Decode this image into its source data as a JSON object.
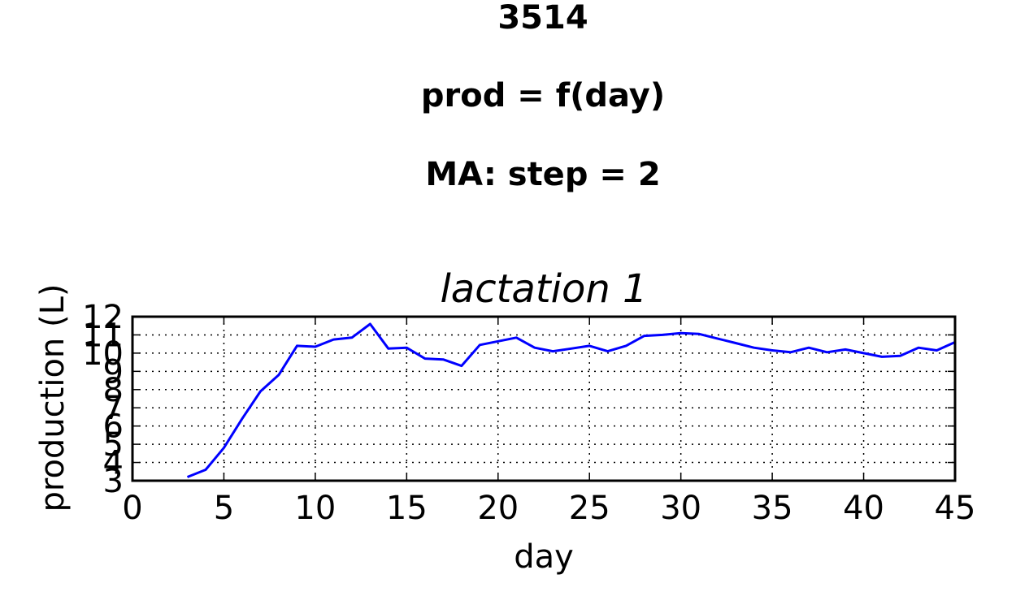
{
  "suptitle": {
    "line1": "3514",
    "line2": "prod = f(day)",
    "line3": "MA: step = 2"
  },
  "chart_data": {
    "type": "line",
    "title": "lactation 1",
    "xlabel": "day",
    "ylabel": "production (L)",
    "xlim": [
      0,
      45
    ],
    "ylim": [
      3,
      12
    ],
    "xticks": [
      0,
      5,
      10,
      15,
      20,
      25,
      30,
      35,
      40,
      45
    ],
    "yticks": [
      3,
      4,
      5,
      6,
      7,
      8,
      9,
      10,
      11,
      12
    ],
    "grid": true,
    "line_color": "#0000ff",
    "series": [
      {
        "x": [
          3,
          4,
          5,
          6,
          7,
          8,
          9,
          10,
          11,
          12,
          13,
          14,
          15,
          16,
          17,
          18,
          19,
          20,
          21,
          22,
          23,
          24,
          25,
          26,
          27,
          28,
          29,
          30,
          31,
          32,
          33,
          34,
          35,
          36,
          37,
          38,
          39,
          40,
          41,
          42,
          43,
          44,
          45
        ],
        "values": [
          3.2,
          3.6,
          4.8,
          6.4,
          7.9,
          8.8,
          10.4,
          10.35,
          10.75,
          10.85,
          11.6,
          10.25,
          10.3,
          9.7,
          9.65,
          9.3,
          10.45,
          10.65,
          10.85,
          10.3,
          10.1,
          10.25,
          10.4,
          10.1,
          10.4,
          10.95,
          11.0,
          11.1,
          11.05,
          10.8,
          10.55,
          10.3,
          10.15,
          10.05,
          10.3,
          10.05,
          10.2,
          10.0,
          9.8,
          9.85,
          10.3,
          10.15,
          10.6
        ]
      }
    ]
  }
}
